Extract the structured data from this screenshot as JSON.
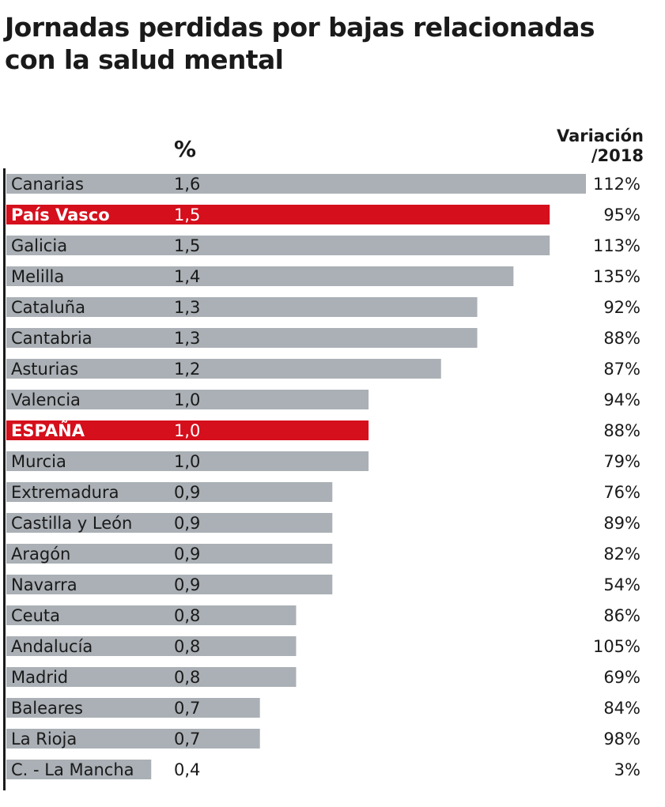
{
  "title": "Jornadas perdidas por bajas relacionadas con la salud mental",
  "column_headers": {
    "percent": "%",
    "variation_line1": "Variación",
    "variation_line2": "/2018"
  },
  "colors": {
    "bar": "#aab0b5",
    "highlight": "#d50f1c",
    "axis": "#1a1a1a"
  },
  "chart_data": {
    "type": "bar",
    "orientation": "horizontal",
    "title": "Jornadas perdidas por bajas relacionadas con la salud mental",
    "xlim": [
      0,
      1.6
    ],
    "categories": [
      "Canarias",
      "País Vasco",
      "Galicia",
      "Melilla",
      "Cataluña",
      "Cantabria",
      "Asturias",
      "Valencia",
      "ESPAÑA",
      "Murcia",
      "Extremadura",
      "Castilla y León",
      "Aragón",
      "Navarra",
      "Ceuta",
      "Andalucía",
      "Madrid",
      "Baleares",
      "La Rioja",
      "C. - La Mancha"
    ],
    "values": [
      1.6,
      1.5,
      1.5,
      1.4,
      1.3,
      1.3,
      1.2,
      1.0,
      1.0,
      1.0,
      0.9,
      0.9,
      0.9,
      0.9,
      0.8,
      0.8,
      0.8,
      0.7,
      0.7,
      0.4
    ],
    "value_labels": [
      "1,6",
      "1,5",
      "1,5",
      "1,4",
      "1,3",
      "1,3",
      "1,2",
      "1,0",
      "1,0",
      "1,0",
      "0,9",
      "0,9",
      "0,9",
      "0,9",
      "0,8",
      "0,8",
      "0,8",
      "0,7",
      "0,7",
      "0,4"
    ],
    "variation_labels": [
      "112%",
      "95%",
      "113%",
      "135%",
      "92%",
      "88%",
      "87%",
      "94%",
      "88%",
      "79%",
      "76%",
      "89%",
      "82%",
      "54%",
      "86%",
      "105%",
      "69%",
      "84%",
      "98%",
      "3%"
    ],
    "highlighted": [
      "País Vasco",
      "ESPAÑA"
    ]
  }
}
